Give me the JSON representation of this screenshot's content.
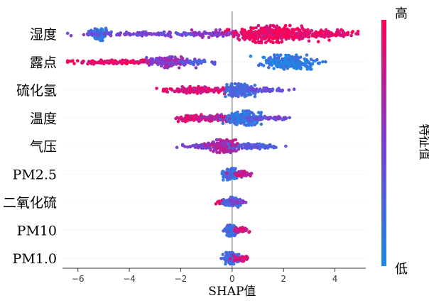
{
  "chart_data": {
    "type": "scatter",
    "subtype": "shap-beeswarm",
    "xlabel": "SHAP值",
    "xlim": [
      -6.6,
      5.2
    ],
    "xticks": [
      -6,
      -4,
      -2,
      0,
      2,
      4
    ],
    "reference_line_x": 0,
    "colorbar": {
      "title": "特征值",
      "high_label": "高",
      "low_label": "低",
      "low_color": "#1e88e5",
      "high_color": "#ff0052"
    },
    "features": [
      {
        "name": "湿度",
        "clusters": [
          {
            "x": -5.2,
            "spread": 0.18,
            "n": 90,
            "color": 0.12,
            "amp": 9
          },
          {
            "x": -3.0,
            "spread": 1.6,
            "n": 130,
            "color": 0.45,
            "amp": 3
          },
          {
            "x": 0.2,
            "spread": 0.9,
            "n": 90,
            "color": 0.6,
            "amp": 6
          },
          {
            "x": 1.6,
            "spread": 0.7,
            "n": 340,
            "color": 0.95,
            "amp": 12
          },
          {
            "x": 3.6,
            "spread": 0.7,
            "n": 120,
            "color": 0.9,
            "amp": 6
          }
        ]
      },
      {
        "name": "露点",
        "clusters": [
          {
            "x": -4.5,
            "spread": 1.0,
            "n": 150,
            "color": 0.93,
            "amp": 3
          },
          {
            "x": -2.4,
            "spread": 0.4,
            "n": 140,
            "color": 0.55,
            "amp": 8
          },
          {
            "x": -1.4,
            "spread": 0.4,
            "n": 40,
            "color": 0.3,
            "amp": 3
          },
          {
            "x": 2.2,
            "spread": 0.5,
            "n": 250,
            "color": 0.1,
            "amp": 10
          }
        ]
      },
      {
        "name": "硫化氢",
        "clusters": [
          {
            "x": -1.4,
            "spread": 0.6,
            "n": 150,
            "color": 0.85,
            "amp": 5
          },
          {
            "x": 0.35,
            "spread": 0.3,
            "n": 160,
            "color": 0.2,
            "amp": 9
          },
          {
            "x": 1.5,
            "spread": 0.4,
            "n": 60,
            "color": 0.4,
            "amp": 3
          }
        ]
      },
      {
        "name": "温度",
        "clusters": [
          {
            "x": -1.6,
            "spread": 0.35,
            "n": 80,
            "color": 0.9,
            "amp": 5
          },
          {
            "x": -0.6,
            "spread": 0.4,
            "n": 80,
            "color": 0.7,
            "amp": 5
          },
          {
            "x": 0.4,
            "spread": 0.35,
            "n": 200,
            "color": 0.15,
            "amp": 10
          },
          {
            "x": 1.4,
            "spread": 0.4,
            "n": 60,
            "color": 0.45,
            "amp": 3
          }
        ]
      },
      {
        "name": "气压",
        "clusters": [
          {
            "x": -1.0,
            "spread": 0.4,
            "n": 70,
            "color": 0.45,
            "amp": 4
          },
          {
            "x": -0.3,
            "spread": 0.25,
            "n": 180,
            "color": 0.7,
            "amp": 9
          },
          {
            "x": 0.9,
            "spread": 0.4,
            "n": 80,
            "color": 0.3,
            "amp": 4
          }
        ]
      },
      {
        "name": "PM2.5",
        "clusters": [
          {
            "x": -0.05,
            "spread": 0.15,
            "n": 140,
            "color": 0.2,
            "amp": 8
          },
          {
            "x": 0.35,
            "spread": 0.2,
            "n": 40,
            "color": 0.8,
            "amp": 4
          }
        ]
      },
      {
        "name": "二氧化硫",
        "clusters": [
          {
            "x": -0.4,
            "spread": 0.1,
            "n": 30,
            "color": 0.9,
            "amp": 3
          },
          {
            "x": 0.0,
            "spread": 0.15,
            "n": 120,
            "color": 0.25,
            "amp": 7
          },
          {
            "x": 0.3,
            "spread": 0.15,
            "n": 30,
            "color": 0.55,
            "amp": 3
          }
        ]
      },
      {
        "name": "PM10",
        "clusters": [
          {
            "x": -0.05,
            "spread": 0.12,
            "n": 130,
            "color": 0.2,
            "amp": 8
          },
          {
            "x": 0.35,
            "spread": 0.15,
            "n": 40,
            "color": 0.85,
            "amp": 4
          }
        ]
      },
      {
        "name": "PM1.0",
        "clusters": [
          {
            "x": -0.05,
            "spread": 0.12,
            "n": 130,
            "color": 0.2,
            "amp": 8
          },
          {
            "x": 0.3,
            "spread": 0.15,
            "n": 35,
            "color": 0.85,
            "amp": 4
          }
        ]
      }
    ]
  }
}
